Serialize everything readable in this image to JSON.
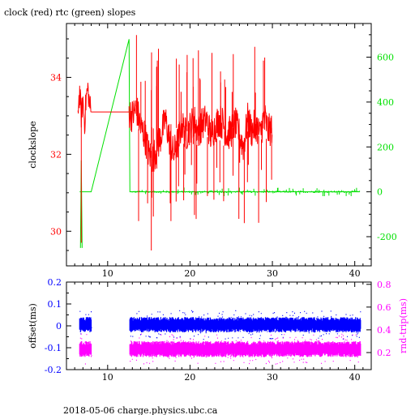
{
  "page": {
    "title": "clock (red) rtc (green) slopes",
    "footer": "2018-05-06 charge.physics.ubc.ca"
  },
  "colors": {
    "red": "#ff0000",
    "green": "#00e000",
    "blue": "#0000ff",
    "magenta": "#ff00ff",
    "axis": "#000000"
  },
  "chart_data": [
    {
      "type": "line",
      "title": "clock (red) rtc (green) slopes",
      "ylabel": "clockslope",
      "y2label": "",
      "xlim": [
        5,
        42
      ],
      "ylim": [
        29.1,
        35.4
      ],
      "y2lim": [
        -330,
        750
      ],
      "xticks": [
        10,
        20,
        30,
        40
      ],
      "yticks": [
        30,
        32,
        34
      ],
      "y2ticks": [
        -200,
        0,
        200,
        400,
        600
      ],
      "series": [
        {
          "name": "clock",
          "color": "#ff0000",
          "axis": "left",
          "x": [
            6.4,
            6.6,
            6.8,
            7.0,
            7.2,
            7.4,
            7.6,
            7.8,
            8.0,
            12.6,
            13.0,
            13.5,
            14.0,
            14.5,
            15.0,
            15.5,
            16.0,
            16.5,
            17.0,
            17.5,
            18.0,
            18.5,
            19.0,
            19.5,
            20.0,
            20.5,
            21.0,
            21.5,
            22.0,
            22.5,
            23.0,
            23.5,
            24.0,
            24.5,
            25.0,
            25.5,
            26.0,
            26.5,
            27.0,
            27.5,
            28.0,
            28.5,
            29.0,
            29.5,
            30.0
          ],
          "y": [
            33.2,
            33.6,
            33.0,
            33.4,
            32.8,
            33.5,
            33.7,
            33.3,
            33.1,
            33.1,
            33.0,
            33.2,
            32.7,
            32.5,
            32.0,
            31.9,
            32.2,
            32.5,
            32.9,
            32.4,
            32.0,
            32.3,
            32.8,
            32.5,
            32.7,
            32.9,
            32.6,
            32.8,
            32.9,
            32.5,
            32.7,
            32.9,
            32.8,
            32.5,
            32.6,
            32.8,
            32.5,
            32.2,
            32.9,
            32.6,
            32.8,
            32.5,
            33.0,
            32.6,
            32.7
          ]
        },
        {
          "name": "rtc",
          "color": "#00e000",
          "axis": "right",
          "x": [
            6.6,
            7.2,
            8.0,
            12.6,
            12.7,
            13.0,
            15.0,
            20.0,
            25.0,
            30.0,
            35.0,
            40.6
          ],
          "y": [
            0,
            0,
            0,
            680,
            0,
            0,
            0,
            0,
            0,
            0,
            0,
            0
          ]
        }
      ]
    },
    {
      "type": "scatter",
      "ylabel": "offset(ms)",
      "y2label": "rnd-trip(ms)",
      "xlim": [
        5,
        42
      ],
      "ylim": [
        -0.2,
        0.2
      ],
      "y2lim": [
        0.05,
        0.82
      ],
      "xticks": [
        10,
        20,
        30,
        40
      ],
      "yticks": [
        -0.2,
        -0.1,
        0,
        0.1,
        0.2
      ],
      "y2ticks": [
        0.2,
        0.4,
        0.6,
        0.8
      ],
      "series": [
        {
          "name": "offset",
          "color": "#0000ff",
          "axis": "left",
          "x_ranges": [
            [
              6.6,
              8.0
            ],
            [
              12.7,
              40.7
            ]
          ],
          "band": [
            -0.03,
            0.04
          ]
        },
        {
          "name": "rnd-trip",
          "color": "#ff00ff",
          "axis": "right",
          "x_ranges": [
            [
              6.6,
              8.0
            ],
            [
              12.7,
              40.7
            ]
          ],
          "band": [
            0.16,
            0.3
          ]
        }
      ]
    }
  ]
}
